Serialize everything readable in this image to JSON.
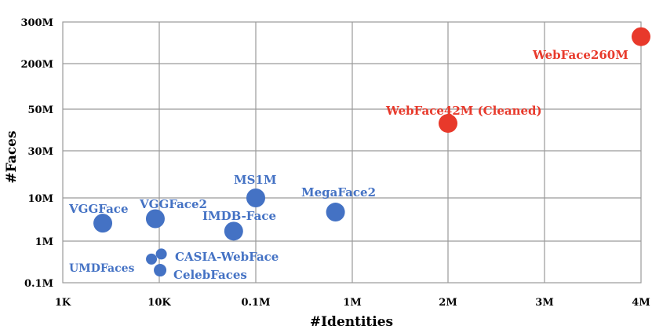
{
  "chart_data": {
    "type": "scatter",
    "xlabel": "#Identities",
    "ylabel": "#Faces",
    "x_ticks": [
      "1K",
      "10K",
      "0.1M",
      "1M",
      "2M",
      "3M",
      "4M"
    ],
    "y_ticks": [
      "0.1M",
      "1M",
      "10M",
      "30M",
      "50M",
      "200M",
      "300M"
    ],
    "grid": true,
    "colors": {
      "original": "#4472c4",
      "new": "#e8392b"
    },
    "points": [
      {
        "label": "VGGFace",
        "x": "2.6K",
        "y": "2.6M",
        "group": "original"
      },
      {
        "label": "VGGFace2",
        "x": "9.1K",
        "y": "3.3M",
        "group": "original"
      },
      {
        "label": "UMDFaces",
        "x": "8.3K",
        "y": "0.37M",
        "group": "original"
      },
      {
        "label": "CASIA-WebFace",
        "x": "10.5K",
        "y": "0.49M",
        "group": "original"
      },
      {
        "label": "CelebFaces",
        "x": "10.2K",
        "y": "0.2M",
        "group": "original"
      },
      {
        "label": "MS1M",
        "x": "0.1M",
        "y": "10M",
        "group": "original"
      },
      {
        "label": "IMDB-Face",
        "x": "59K",
        "y": "1.7M",
        "group": "original"
      },
      {
        "label": "MegaFace2",
        "x": "0.67M",
        "y": "4.7M",
        "group": "original"
      },
      {
        "label": "WebFace42M (Cleaned)",
        "x": "2M",
        "y": "42M",
        "group": "new"
      },
      {
        "label": "WebFace260M",
        "x": "4M",
        "y": "260M",
        "group": "new"
      }
    ]
  }
}
